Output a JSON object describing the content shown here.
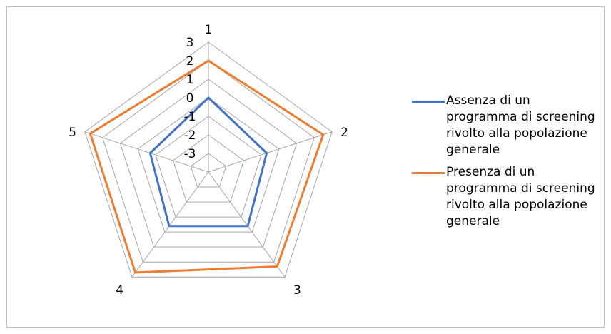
{
  "chart_data": {
    "type": "radar",
    "categories": [
      "1",
      "2",
      "3",
      "4",
      "5"
    ],
    "tick_labels": [
      "3",
      "2",
      "1",
      "0",
      "-1",
      "-2",
      "-3"
    ],
    "range": [
      -4,
      3
    ],
    "grid": true,
    "legend_position": "right",
    "series": [
      {
        "name": "Assenza di un programma di screening rivolto alla popolazione generale",
        "color": "#4472c4",
        "values": [
          0,
          -0.7,
          -0.4,
          -0.4,
          -0.7
        ]
      },
      {
        "name": "Presenza di un programma di screening rivolto alla popolazione generale",
        "color": "#ed7d31",
        "values": [
          2,
          2.5,
          2.3,
          2.7,
          2.7
        ]
      }
    ]
  },
  "colors": {
    "grid": "#a6a6a6",
    "frame": "#bfbfbf"
  }
}
